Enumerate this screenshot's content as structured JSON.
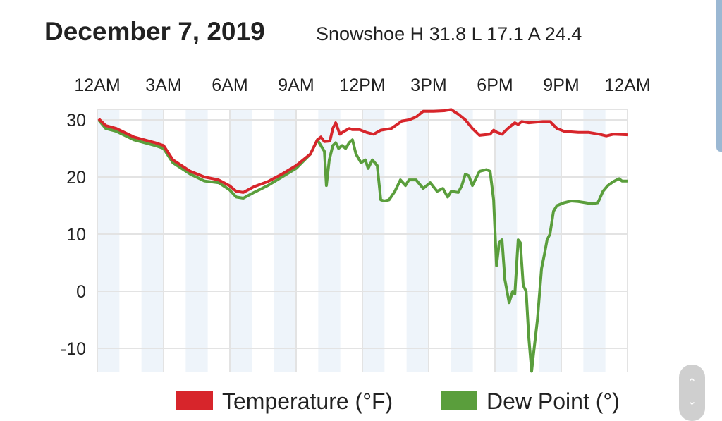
{
  "header": {
    "title": "December 7, 2019",
    "subtitle": "Snowshoe H 31.8 L 17.1 A 24.4"
  },
  "chart_data": {
    "type": "line",
    "title": "December 7, 2019",
    "subtitle": "Snowshoe H 31.8 L 17.1 A 24.4",
    "xlabel": "",
    "ylabel": "",
    "x_unit": "hours since midnight",
    "xlim": [
      0,
      24
    ],
    "ylim": [
      -14,
      32
    ],
    "x_ticks": [
      0,
      3,
      6,
      9,
      12,
      15,
      18,
      21,
      24
    ],
    "x_tick_labels": [
      "12AM",
      "3AM",
      "6AM",
      "9AM",
      "12PM",
      "3PM",
      "6PM",
      "9PM",
      "12AM"
    ],
    "y_ticks": [
      30,
      20,
      10,
      0,
      -10
    ],
    "y_tick_labels": [
      "30",
      "20",
      "10",
      "0",
      "-10"
    ],
    "grid": true,
    "legend_position": "bottom",
    "series": [
      {
        "name": "Temperature (°F)",
        "color": "#d7252b",
        "points": [
          [
            0.06,
            30.2
          ],
          [
            0.38,
            29
          ],
          [
            0.86,
            28.5
          ],
          [
            1.66,
            27
          ],
          [
            2.62,
            26
          ],
          [
            3.0,
            25.5
          ],
          [
            3.42,
            23
          ],
          [
            4.21,
            21
          ],
          [
            4.85,
            20
          ],
          [
            5.49,
            19.5
          ],
          [
            5.97,
            18.5
          ],
          [
            6.29,
            17.5
          ],
          [
            6.61,
            17.3
          ],
          [
            7.09,
            18.3
          ],
          [
            7.72,
            19.2
          ],
          [
            8.36,
            20.5
          ],
          [
            9.0,
            22
          ],
          [
            9.64,
            24
          ],
          [
            9.96,
            26.5
          ],
          [
            10.12,
            27
          ],
          [
            10.28,
            26.2
          ],
          [
            10.53,
            26.3
          ],
          [
            10.66,
            28.5
          ],
          [
            10.79,
            29.5
          ],
          [
            10.98,
            27.5
          ],
          [
            11.17,
            28
          ],
          [
            11.4,
            28.5
          ],
          [
            11.55,
            28.3
          ],
          [
            11.87,
            28.3
          ],
          [
            12.19,
            27.8
          ],
          [
            12.51,
            27.5
          ],
          [
            12.83,
            28.2
          ],
          [
            13.31,
            28.5
          ],
          [
            13.79,
            29.8
          ],
          [
            14.11,
            30
          ],
          [
            14.43,
            30.5
          ],
          [
            14.75,
            31.5
          ],
          [
            15.22,
            31.5
          ],
          [
            15.7,
            31.6
          ],
          [
            16.02,
            31.8
          ],
          [
            16.34,
            31
          ],
          [
            16.66,
            30
          ],
          [
            16.98,
            28.5
          ],
          [
            17.3,
            27.3
          ],
          [
            17.78,
            27.5
          ],
          [
            17.94,
            28.2
          ],
          [
            18.1,
            27.8
          ],
          [
            18.32,
            27.5
          ],
          [
            18.58,
            28.5
          ],
          [
            18.9,
            29.5
          ],
          [
            19.05,
            29.2
          ],
          [
            19.21,
            29.7
          ],
          [
            19.53,
            29.5
          ],
          [
            20.17,
            29.7
          ],
          [
            20.49,
            29.7
          ],
          [
            20.81,
            28.5
          ],
          [
            21.13,
            28
          ],
          [
            21.77,
            27.8
          ],
          [
            22.25,
            27.8
          ],
          [
            22.73,
            27.5
          ],
          [
            23.04,
            27.2
          ],
          [
            23.36,
            27.5
          ],
          [
            24,
            27.4
          ]
        ]
      },
      {
        "name": "Dew Point (°)",
        "color": "#5a9e3c",
        "points": [
          [
            0.06,
            30
          ],
          [
            0.38,
            28.5
          ],
          [
            0.86,
            28
          ],
          [
            1.66,
            26.5
          ],
          [
            2.62,
            25.5
          ],
          [
            3.0,
            25
          ],
          [
            3.42,
            22.5
          ],
          [
            4.21,
            20.5
          ],
          [
            4.85,
            19.3
          ],
          [
            5.49,
            19
          ],
          [
            5.97,
            17.8
          ],
          [
            6.29,
            16.5
          ],
          [
            6.61,
            16.3
          ],
          [
            7.09,
            17.3
          ],
          [
            7.72,
            18.5
          ],
          [
            8.36,
            20
          ],
          [
            9.0,
            21.5
          ],
          [
            9.64,
            24
          ],
          [
            9.96,
            26.5
          ],
          [
            10.12,
            25.5
          ],
          [
            10.28,
            24.5
          ],
          [
            10.37,
            18.5
          ],
          [
            10.5,
            23
          ],
          [
            10.66,
            25.5
          ],
          [
            10.79,
            26
          ],
          [
            10.92,
            25
          ],
          [
            11.08,
            25.5
          ],
          [
            11.24,
            25
          ],
          [
            11.4,
            26
          ],
          [
            11.55,
            26.5
          ],
          [
            11.71,
            24
          ],
          [
            11.94,
            22.5
          ],
          [
            12.13,
            23
          ],
          [
            12.26,
            21.5
          ],
          [
            12.45,
            23
          ],
          [
            12.67,
            22
          ],
          [
            12.83,
            16
          ],
          [
            12.99,
            15.8
          ],
          [
            13.21,
            16
          ],
          [
            13.47,
            17.5
          ],
          [
            13.72,
            19.5
          ],
          [
            13.95,
            18.5
          ],
          [
            14.11,
            19.5
          ],
          [
            14.43,
            19.5
          ],
          [
            14.75,
            18
          ],
          [
            15.07,
            19
          ],
          [
            15.38,
            17.5
          ],
          [
            15.64,
            18
          ],
          [
            15.86,
            16.5
          ],
          [
            16.02,
            17.5
          ],
          [
            16.34,
            17.3
          ],
          [
            16.5,
            18.5
          ],
          [
            16.66,
            20.5
          ],
          [
            16.82,
            20.2
          ],
          [
            16.98,
            18.5
          ],
          [
            17.3,
            21
          ],
          [
            17.62,
            21.3
          ],
          [
            17.78,
            21
          ],
          [
            17.94,
            16
          ],
          [
            18.07,
            4.5
          ],
          [
            18.19,
            8.5
          ],
          [
            18.32,
            9
          ],
          [
            18.45,
            2
          ],
          [
            18.64,
            -2
          ],
          [
            18.8,
            0
          ],
          [
            18.9,
            -0.5
          ],
          [
            19.05,
            9
          ],
          [
            19.15,
            8.5
          ],
          [
            19.28,
            1
          ],
          [
            19.41,
            0
          ],
          [
            19.53,
            -8
          ],
          [
            19.66,
            -14
          ],
          [
            19.76,
            -10.5
          ],
          [
            19.92,
            -5
          ],
          [
            20.11,
            4
          ],
          [
            20.24,
            6.5
          ],
          [
            20.36,
            9
          ],
          [
            20.49,
            10
          ],
          [
            20.65,
            14
          ],
          [
            20.81,
            15
          ],
          [
            21.13,
            15.5
          ],
          [
            21.45,
            15.8
          ],
          [
            21.77,
            15.7
          ],
          [
            22.09,
            15.5
          ],
          [
            22.41,
            15.3
          ],
          [
            22.66,
            15.5
          ],
          [
            22.89,
            17.5
          ],
          [
            23.11,
            18.5
          ],
          [
            23.36,
            19.2
          ],
          [
            23.62,
            19.7
          ],
          [
            23.75,
            19.3
          ],
          [
            24,
            19.3
          ]
        ]
      }
    ]
  },
  "controls": {
    "scroll_up": "⌃",
    "scroll_down": "⌄"
  }
}
